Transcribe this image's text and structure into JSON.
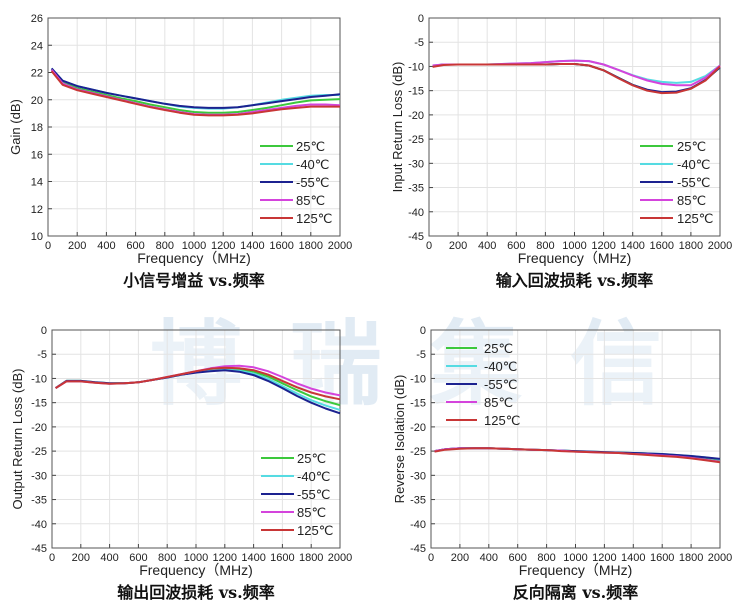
{
  "watermark": "博瑞集信",
  "colors": {
    "25°C": "#3cc83c",
    "-40°C": "#55dbe2",
    "-55°C": "#1c2290",
    "85°C": "#d444dc",
    "125°C": "#c83636"
  },
  "chart_data": [
    {
      "type": "line",
      "title": "小信号增益 vs.频率",
      "xlabel": "Frequency（MHz)",
      "ylabel": "Gain (dB)",
      "xlim": [
        0,
        2000
      ],
      "ylim": [
        10,
        26
      ],
      "xticks": [
        0,
        200,
        400,
        600,
        800,
        1000,
        1200,
        1400,
        1600,
        1800,
        2000
      ],
      "yticks": [
        10,
        12,
        14,
        16,
        18,
        20,
        22,
        24,
        26
      ],
      "grid": true,
      "legend": "bottom-right",
      "x": [
        25,
        100,
        200,
        300,
        400,
        500,
        600,
        700,
        800,
        900,
        1000,
        1100,
        1200,
        1300,
        1400,
        1500,
        1600,
        1700,
        1800,
        1900,
        2000
      ],
      "series": [
        {
          "name": "25℃",
          "key": "25°C",
          "values": [
            22.2,
            21.3,
            20.85,
            20.6,
            20.35,
            20.1,
            19.9,
            19.65,
            19.45,
            19.25,
            19.1,
            19.05,
            19.05,
            19.1,
            19.25,
            19.4,
            19.6,
            19.8,
            19.95,
            20.0,
            20.05
          ]
        },
        {
          "name": "-40℃",
          "key": "-40°C",
          "values": [
            22.3,
            21.4,
            21.0,
            20.75,
            20.5,
            20.3,
            20.1,
            19.9,
            19.7,
            19.5,
            19.4,
            19.35,
            19.35,
            19.45,
            19.6,
            19.8,
            20.0,
            20.15,
            20.3,
            20.35,
            20.35
          ]
        },
        {
          "name": "-55℃",
          "key": "-55°C",
          "values": [
            22.3,
            21.4,
            21.0,
            20.75,
            20.5,
            20.3,
            20.1,
            19.9,
            19.7,
            19.55,
            19.45,
            19.4,
            19.4,
            19.45,
            19.6,
            19.75,
            19.9,
            20.05,
            20.2,
            20.3,
            20.4
          ]
        },
        {
          "name": "85℃",
          "key": "85°C",
          "values": [
            22.2,
            21.2,
            20.75,
            20.5,
            20.25,
            20.0,
            19.75,
            19.5,
            19.3,
            19.1,
            18.95,
            18.9,
            18.9,
            18.95,
            19.1,
            19.25,
            19.4,
            19.55,
            19.65,
            19.65,
            19.6
          ]
        },
        {
          "name": "125℃",
          "key": "125°C",
          "values": [
            22.1,
            21.1,
            20.7,
            20.45,
            20.2,
            19.95,
            19.7,
            19.45,
            19.25,
            19.05,
            18.9,
            18.85,
            18.85,
            18.9,
            19.0,
            19.15,
            19.3,
            19.4,
            19.5,
            19.5,
            19.5
          ]
        }
      ]
    },
    {
      "type": "line",
      "title": "输入回波损耗 vs.频率",
      "xlabel": "Frequency（MHz)",
      "ylabel": "Input Return Loss (dB)",
      "xlim": [
        0,
        2000
      ],
      "ylim": [
        -45,
        0
      ],
      "xticks": [
        0,
        200,
        400,
        600,
        800,
        1000,
        1200,
        1400,
        1600,
        1800,
        2000
      ],
      "yticks": [
        -45,
        -40,
        -35,
        -30,
        -25,
        -20,
        -15,
        -10,
        -5,
        0
      ],
      "grid": true,
      "legend": "bottom-right",
      "x": [
        25,
        100,
        200,
        300,
        400,
        500,
        600,
        700,
        800,
        900,
        1000,
        1100,
        1200,
        1300,
        1400,
        1500,
        1600,
        1700,
        1800,
        1900,
        2000
      ],
      "series": [
        {
          "name": "25℃",
          "key": "25°C",
          "values": [
            -10,
            -9.6,
            -9.6,
            -9.6,
            -9.6,
            -9.6,
            -9.6,
            -9.6,
            -9.6,
            -9.5,
            -9.5,
            -9.8,
            -10.8,
            -12.3,
            -13.8,
            -14.9,
            -15.4,
            -15.3,
            -14.6,
            -12.8,
            -10.2
          ]
        },
        {
          "name": "-40℃",
          "key": "-40°C",
          "values": [
            -9.8,
            -9.6,
            -9.6,
            -9.6,
            -9.6,
            -9.5,
            -9.4,
            -9.3,
            -9.1,
            -8.9,
            -8.8,
            -8.9,
            -9.6,
            -10.7,
            -11.8,
            -12.7,
            -13.2,
            -13.4,
            -13.2,
            -12.0,
            -9.8
          ]
        },
        {
          "name": "-55℃",
          "key": "-55°C",
          "values": [
            -9.9,
            -9.6,
            -9.6,
            -9.6,
            -9.6,
            -9.6,
            -9.6,
            -9.6,
            -9.6,
            -9.5,
            -9.5,
            -9.8,
            -10.8,
            -12.3,
            -13.8,
            -14.8,
            -15.3,
            -15.2,
            -14.5,
            -12.8,
            -10.2
          ]
        },
        {
          "name": "85℃",
          "key": "85°C",
          "values": [
            -9.8,
            -9.6,
            -9.6,
            -9.6,
            -9.6,
            -9.5,
            -9.4,
            -9.3,
            -9.1,
            -8.9,
            -8.8,
            -8.9,
            -9.6,
            -10.7,
            -11.9,
            -12.9,
            -13.6,
            -13.9,
            -13.9,
            -12.3,
            -9.8
          ]
        },
        {
          "name": "125℃",
          "key": "125°C",
          "values": [
            -10.1,
            -9.7,
            -9.6,
            -9.6,
            -9.6,
            -9.6,
            -9.6,
            -9.6,
            -9.6,
            -9.5,
            -9.5,
            -9.8,
            -10.8,
            -12.4,
            -13.9,
            -15.0,
            -15.5,
            -15.4,
            -14.6,
            -12.9,
            -10.0
          ]
        }
      ]
    },
    {
      "type": "line",
      "title": "输出回波损耗 vs.频率",
      "xlabel": "Frequency（MHz)",
      "ylabel": "Output Return Loss (dB)",
      "xlim": [
        0,
        2000
      ],
      "ylim": [
        -45,
        0
      ],
      "xticks": [
        0,
        200,
        400,
        600,
        800,
        1000,
        1200,
        1400,
        1600,
        1800,
        2000
      ],
      "yticks": [
        -45,
        -40,
        -35,
        -30,
        -25,
        -20,
        -15,
        -10,
        -5,
        0
      ],
      "grid": true,
      "legend": "bottom-right",
      "x": [
        25,
        100,
        200,
        300,
        400,
        500,
        600,
        700,
        800,
        900,
        1000,
        1100,
        1200,
        1300,
        1400,
        1500,
        1600,
        1700,
        1800,
        1900,
        2000
      ],
      "series": [
        {
          "name": "25℃",
          "key": "25°C",
          "values": [
            -12,
            -10.5,
            -10.5,
            -10.8,
            -11,
            -11,
            -10.8,
            -10.3,
            -9.8,
            -9.2,
            -8.7,
            -8.3,
            -8.0,
            -8.1,
            -8.6,
            -9.6,
            -11.0,
            -12.4,
            -13.7,
            -14.7,
            -15.5
          ]
        },
        {
          "name": "-40℃",
          "key": "-40°C",
          "values": [
            -12,
            -10.5,
            -10.5,
            -10.8,
            -11,
            -11,
            -10.8,
            -10.3,
            -9.8,
            -9.2,
            -8.7,
            -8.4,
            -8.2,
            -8.4,
            -9.0,
            -10.1,
            -11.6,
            -13.1,
            -14.5,
            -15.6,
            -16.5
          ]
        },
        {
          "name": "-55℃",
          "key": "-55°C",
          "values": [
            -12,
            -10.5,
            -10.5,
            -10.8,
            -11,
            -11,
            -10.8,
            -10.3,
            -9.8,
            -9.2,
            -8.8,
            -8.5,
            -8.3,
            -8.6,
            -9.3,
            -10.5,
            -12.0,
            -13.6,
            -15.0,
            -16.2,
            -17.2
          ]
        },
        {
          "name": "85℃",
          "key": "85°C",
          "values": [
            -12,
            -10.6,
            -10.6,
            -10.9,
            -11.1,
            -11,
            -10.8,
            -10.3,
            -9.7,
            -9.1,
            -8.5,
            -7.9,
            -7.5,
            -7.4,
            -7.7,
            -8.5,
            -9.7,
            -11.0,
            -12.1,
            -12.9,
            -13.5
          ]
        },
        {
          "name": "125℃",
          "key": "125°C",
          "values": [
            -12,
            -10.6,
            -10.6,
            -10.9,
            -11.1,
            -11,
            -10.8,
            -10.3,
            -9.7,
            -9.1,
            -8.5,
            -8.0,
            -7.8,
            -7.9,
            -8.3,
            -9.2,
            -10.5,
            -11.8,
            -12.9,
            -13.7,
            -14.3
          ]
        }
      ]
    },
    {
      "type": "line",
      "title": "反向隔离 vs.频率",
      "xlabel": "Frequency（MHz)",
      "ylabel": "Reverse Isolation (dB)",
      "xlim": [
        0,
        2000
      ],
      "ylim": [
        -45,
        0
      ],
      "xticks": [
        0,
        200,
        400,
        600,
        800,
        1000,
        1200,
        1400,
        1600,
        1800,
        2000
      ],
      "yticks": [
        -45,
        -40,
        -35,
        -30,
        -25,
        -20,
        -15,
        -10,
        -5,
        0
      ],
      "grid": true,
      "legend": "top-left",
      "x": [
        25,
        100,
        200,
        300,
        400,
        500,
        600,
        700,
        800,
        900,
        1000,
        1100,
        1200,
        1300,
        1400,
        1500,
        1600,
        1700,
        1800,
        1900,
        2000
      ],
      "series": [
        {
          "name": "25℃",
          "key": "25°C",
          "values": [
            -25,
            -24.6,
            -24.4,
            -24.4,
            -24.4,
            -24.5,
            -24.6,
            -24.7,
            -24.8,
            -24.9,
            -25,
            -25.1,
            -25.2,
            -25.3,
            -25.4,
            -25.5,
            -25.7,
            -25.9,
            -26.1,
            -26.4,
            -26.8
          ]
        },
        {
          "name": "-40℃",
          "key": "-40°C",
          "values": [
            -25,
            -24.6,
            -24.4,
            -24.4,
            -24.4,
            -24.5,
            -24.6,
            -24.7,
            -24.8,
            -24.9,
            -25,
            -25.1,
            -25.2,
            -25.3,
            -25.4,
            -25.5,
            -25.6,
            -25.8,
            -26.0,
            -26.3,
            -26.7
          ]
        },
        {
          "name": "-55℃",
          "key": "-55°C",
          "values": [
            -25,
            -24.6,
            -24.4,
            -24.4,
            -24.4,
            -24.5,
            -24.6,
            -24.7,
            -24.8,
            -24.9,
            -25,
            -25.1,
            -25.2,
            -25.3,
            -25.4,
            -25.5,
            -25.6,
            -25.8,
            -26.0,
            -26.3,
            -26.6
          ]
        },
        {
          "name": "85℃",
          "key": "85°C",
          "values": [
            -25,
            -24.6,
            -24.4,
            -24.4,
            -24.4,
            -24.5,
            -24.6,
            -24.7,
            -24.8,
            -24.9,
            -25.1,
            -25.2,
            -25.3,
            -25.4,
            -25.6,
            -25.7,
            -25.9,
            -26.1,
            -26.4,
            -26.8,
            -27.2
          ]
        },
        {
          "name": "125℃",
          "key": "125°C",
          "values": [
            -25.1,
            -24.7,
            -24.5,
            -24.4,
            -24.4,
            -24.5,
            -24.6,
            -24.7,
            -24.8,
            -25.0,
            -25.1,
            -25.2,
            -25.3,
            -25.4,
            -25.6,
            -25.8,
            -26.0,
            -26.2,
            -26.5,
            -26.9,
            -27.3
          ]
        }
      ]
    }
  ]
}
